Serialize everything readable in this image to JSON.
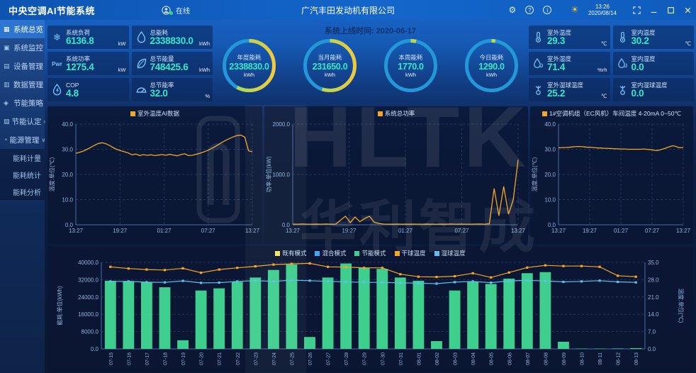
{
  "app": {
    "title": "中央空调AI节能系统",
    "online_label": "在线",
    "company": "广汽丰田发动机有限公司",
    "time": "13:26",
    "date": "2020/08/14"
  },
  "sidebar": {
    "items": [
      {
        "label": "系统总览",
        "icon": "overview-icon",
        "active": true
      },
      {
        "label": "系统监控",
        "icon": "monitor-icon"
      },
      {
        "label": "设备管理",
        "icon": "device-icon"
      },
      {
        "label": "数据管理",
        "icon": "database-icon"
      },
      {
        "label": "节能策略",
        "icon": "strategy-icon"
      },
      {
        "label": "节能认定",
        "icon": "certify-icon",
        "expand": "right"
      },
      {
        "label": "能源管理",
        "icon": "energy-icon",
        "expand": "down",
        "children": [
          "能耗计量",
          "能耗统计",
          "能耗分析"
        ]
      }
    ]
  },
  "left_cards": [
    {
      "label": "系统负荷",
      "value": "6136.8",
      "unit": "kW",
      "icon": "snowflake-icon"
    },
    {
      "label": "总能耗",
      "value": "2338830.0",
      "unit": "kWh",
      "icon": "drop-icon"
    },
    {
      "label": "系统功率",
      "value": "1275.4",
      "unit": "kW",
      "icon": "power-icon"
    },
    {
      "label": "总节能量",
      "value": "748425.6",
      "unit": "kWh",
      "icon": "leaf-icon"
    },
    {
      "label": "COP",
      "value": "4.8",
      "unit": "",
      "icon": "cop-icon"
    },
    {
      "label": "总节能率",
      "value": "32.0",
      "unit": "%",
      "icon": "gauge-icon"
    }
  ],
  "right_cards": [
    {
      "label": "室外温度",
      "value": "29.3",
      "unit": "℃",
      "icon": "thermometer-icon"
    },
    {
      "label": "室内温度",
      "value": "30.2",
      "unit": "℃",
      "icon": "thermometer-icon"
    },
    {
      "label": "室外湿度",
      "value": "71.4",
      "unit": "%rh",
      "icon": "humidity-icon"
    },
    {
      "label": "室内湿度",
      "value": "0.0",
      "unit": "",
      "icon": "humidity-icon"
    },
    {
      "label": "室外湿球温度",
      "value": "25.2",
      "unit": "℃",
      "icon": "wetbulb-icon"
    },
    {
      "label": "室内湿球温度",
      "value": "0.0",
      "unit": "",
      "icon": "wetbulb-icon"
    }
  ],
  "center": {
    "online_time_label": "系统上线时间: 2020-06-17",
    "gauges": [
      {
        "label": "年度能耗",
        "value": "2338830.0",
        "unit": "kWh",
        "percent": 58
      },
      {
        "label": "当月能耗",
        "value": "231650.0",
        "unit": "kWh",
        "percent": 55
      },
      {
        "label": "本周能耗",
        "value": "1770.0",
        "unit": "kWh",
        "percent": 3.5
      },
      {
        "label": "今日能耗",
        "value": "1290.0",
        "unit": "kWh",
        "percent": 2.5
      }
    ]
  },
  "watermark": {
    "line1": "HLTK",
    "line2": "华利智成"
  },
  "colors": {
    "accent_teal": "#37e8c6",
    "line_orange": "#f5a623",
    "bar_green": "#3ecf8e",
    "ring_blue": "#2397d8",
    "legend_yellow": "#f7e35a",
    "legend_blue": "#3fa7f5",
    "legend_lightblue": "#5bc0eb"
  },
  "chart_data": [
    {
      "type": "line",
      "legend": "室外温度AI数据",
      "color": "#f5a623",
      "ylabel": "温度:单位(℃)",
      "ylim": [
        0,
        40
      ],
      "yticks": [
        0,
        10,
        20,
        30,
        40
      ],
      "xticks": [
        "13:27",
        "19:27",
        "01:27",
        "07:27",
        "13:27"
      ],
      "values": [
        28.4,
        28.8,
        29.3,
        30.0,
        30.8,
        31.6,
        32.3,
        32.6,
        32.2,
        31.5,
        30.6,
        29.9,
        29.4,
        29.0,
        28.5,
        27.8,
        28.1,
        27.5,
        27.9,
        27.6,
        27.8,
        27.5,
        27.7,
        27.9,
        27.6,
        28.0,
        27.7,
        27.4,
        27.9,
        28.2,
        27.5,
        27.6,
        28.0,
        28.4,
        28.9,
        29.5,
        30.2,
        31.0,
        31.9,
        32.8,
        33.6,
        34.3,
        35.0,
        35.5,
        35.6,
        34.8,
        29.4,
        29.0
      ]
    },
    {
      "type": "line",
      "legend": "系统总功率",
      "color": "#f5a623",
      "ylabel": "功率:单位(kW)",
      "ylim": [
        0,
        2000
      ],
      "yticks": [
        0,
        1000,
        2000
      ],
      "xticks": [
        "13:27",
        "19:27",
        "01:27",
        "07:27",
        "13:27"
      ],
      "values": [
        14,
        12,
        15,
        13,
        12,
        14,
        13,
        15,
        12,
        14,
        95,
        170,
        45,
        155,
        60,
        125,
        170,
        50,
        25,
        14,
        13,
        12,
        14,
        13,
        12,
        14,
        13,
        12,
        14,
        13,
        12,
        14,
        13,
        15,
        12,
        14,
        13,
        12,
        14,
        15,
        13,
        20,
        720,
        180,
        760,
        210,
        500,
        1290
      ]
    },
    {
      "type": "line",
      "legend": "1#空调机组（EC风机）车间温度 4-20mA 0~50℃",
      "color": "#f5a623",
      "ylabel": "温度:单位(℃)",
      "ylim": [
        0,
        40
      ],
      "yticks": [
        0,
        10,
        20,
        30,
        40
      ],
      "xticks": [
        "13:27",
        "19:27",
        "01:27",
        "07:27",
        "13:27"
      ],
      "values": [
        30.6,
        30.6,
        30.7,
        30.7,
        30.8,
        30.9,
        31.0,
        31.1,
        31.1,
        31.0,
        30.9,
        30.8,
        30.8,
        30.7,
        30.6,
        30.5,
        30.5,
        30.4,
        30.4,
        30.3,
        30.3,
        30.2,
        30.2,
        30.1,
        30.1,
        30.1,
        30.0,
        30.0,
        30.0,
        30.0,
        30.0,
        30.0,
        30.1,
        30.0,
        29.9,
        29.8,
        29.6,
        29.5,
        29.7,
        30.0,
        30.3,
        30.7,
        31.1,
        31.4,
        31.2,
        30.8,
        30.6,
        30.7
      ]
    },
    {
      "type": "bar-line-combo",
      "ylabel_left": "能耗:单位(kWh)",
      "ylabel_right": "温度:单位(℃)",
      "ylim_left": [
        0,
        40000
      ],
      "yticks_left": [
        0,
        8000,
        16000,
        24000,
        32000,
        40000
      ],
      "ylim_right": [
        0,
        35
      ],
      "yticks_right": [
        0,
        7,
        14,
        21,
        28,
        35
      ],
      "categories": [
        "07-15",
        "07-16",
        "07-17",
        "07-18",
        "07-19",
        "07-20",
        "07-21",
        "07-22",
        "07-23",
        "07-24",
        "07-25",
        "07-26",
        "07-27",
        "07-28",
        "07-29",
        "07-30",
        "07-31",
        "08-01",
        "08-02",
        "08-03",
        "08-04",
        "08-05",
        "08-06",
        "08-07",
        "08-08",
        "08-09",
        "08-10",
        "08-11",
        "08-12",
        "08-13"
      ],
      "series": [
        {
          "name": "既有模式",
          "type": "bar",
          "color": "#f7e35a",
          "values": [
            0,
            0,
            0,
            0,
            0,
            0,
            0,
            0,
            0,
            0,
            0,
            0,
            0,
            0,
            0,
            0,
            0,
            0,
            0,
            0,
            0,
            0,
            0,
            0,
            0,
            0,
            0,
            0,
            0,
            0
          ]
        },
        {
          "name": "混合模式",
          "type": "bar",
          "color": "#3fa7f5",
          "values": [
            0,
            0,
            0,
            0,
            0,
            0,
            0,
            0,
            0,
            0,
            0,
            0,
            0,
            0,
            0,
            0,
            0,
            0,
            0,
            0,
            0,
            0,
            0,
            0,
            0,
            0,
            0,
            0,
            0,
            0
          ]
        },
        {
          "name": "节能模式",
          "type": "bar",
          "color": "#3ecf8e",
          "values": [
            31500,
            31400,
            31000,
            28500,
            4000,
            27000,
            28000,
            31000,
            33000,
            36500,
            39000,
            5500,
            33000,
            39500,
            37500,
            37000,
            33000,
            31500,
            3600,
            27000,
            31000,
            30000,
            32500,
            35000,
            35500,
            3300,
            150,
            150,
            200,
            350
          ]
        },
        {
          "name": "干球温度",
          "type": "line",
          "axis": "right",
          "color": "#f5a623",
          "values": [
            33.2,
            32.5,
            32.1,
            31.9,
            32.6,
            30.8,
            32.1,
            32.8,
            33.4,
            34.1,
            34.4,
            34.6,
            33.2,
            33.1,
            32.8,
            32.8,
            30.2,
            29.2,
            29.1,
            29.4,
            30.6,
            28.9,
            30.9,
            32.9,
            33.8,
            33.5,
            33.5,
            33.2,
            29.6,
            29.2
          ]
        },
        {
          "name": "湿球温度",
          "type": "line",
          "axis": "right",
          "color": "#5bc0eb",
          "values": [
            27.3,
            27.3,
            27.0,
            26.9,
            27.5,
            26.7,
            26.8,
            27.3,
            27.6,
            27.3,
            27.8,
            27.6,
            27.3,
            27.1,
            26.9,
            26.9,
            26.7,
            26.6,
            26.4,
            27.0,
            27.3,
            26.8,
            27.5,
            27.7,
            27.5,
            27.1,
            27.3,
            27.6,
            27.1,
            26.9
          ]
        }
      ]
    }
  ]
}
